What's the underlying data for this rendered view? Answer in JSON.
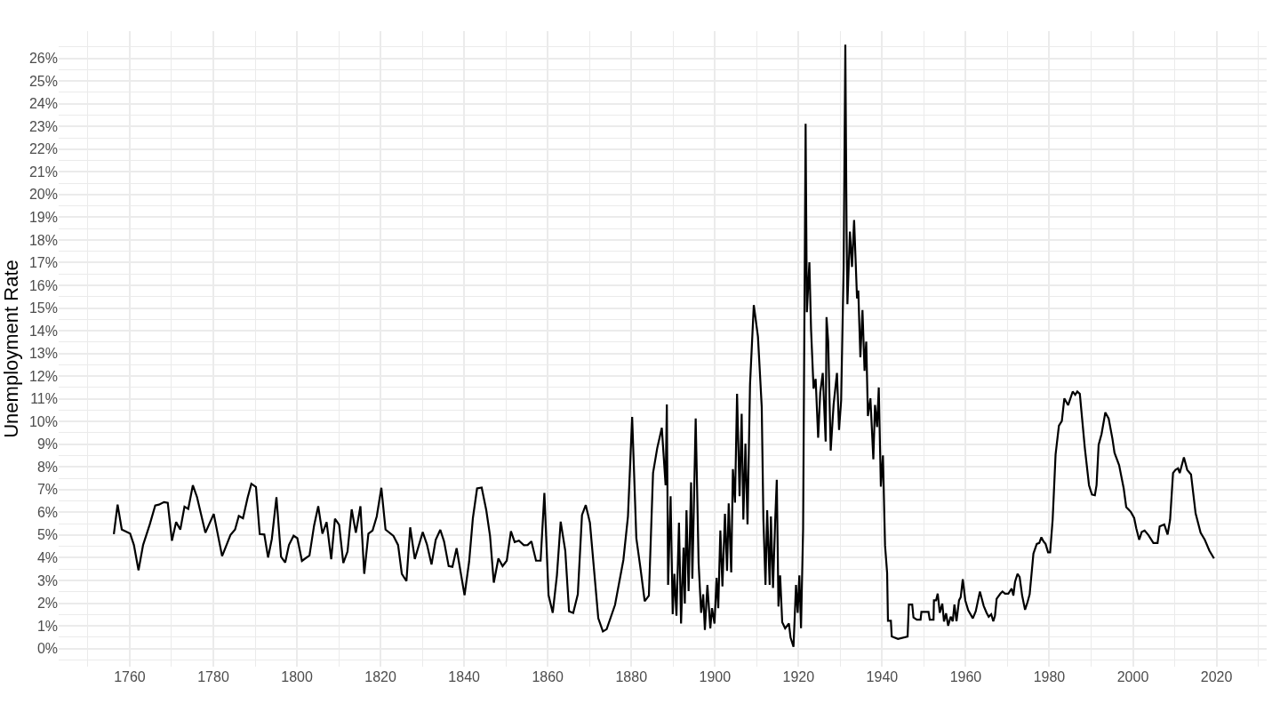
{
  "chart_data": {
    "type": "line",
    "ylabel": "Unemployment Rate",
    "xlim": [
      1743,
      2032
    ],
    "ylim": [
      -0.8,
      27.2
    ],
    "xticks": [
      1760,
      1780,
      1800,
      1820,
      1840,
      1860,
      1880,
      1900,
      1920,
      1940,
      1960,
      1980,
      2000,
      2020
    ],
    "yticks": [
      {
        "value": 0,
        "label": "0%"
      },
      {
        "value": 1,
        "label": "1%"
      },
      {
        "value": 2,
        "label": "2%"
      },
      {
        "value": 3,
        "label": "3%"
      },
      {
        "value": 4,
        "label": "4%"
      },
      {
        "value": 5,
        "label": "5%"
      },
      {
        "value": 6,
        "label": "6%"
      },
      {
        "value": 7,
        "label": "7%"
      },
      {
        "value": 8,
        "label": "8%"
      },
      {
        "value": 9,
        "label": "9%"
      },
      {
        "value": 10,
        "label": "10%"
      },
      {
        "value": 11,
        "label": "11%"
      },
      {
        "value": 12,
        "label": "12%"
      },
      {
        "value": 13,
        "label": "13%"
      },
      {
        "value": 14,
        "label": "14%"
      },
      {
        "value": 15,
        "label": "15%"
      },
      {
        "value": 16,
        "label": "16%"
      },
      {
        "value": 17,
        "label": "17%"
      },
      {
        "value": 18,
        "label": "18%"
      },
      {
        "value": 19,
        "label": "19%"
      },
      {
        "value": 20,
        "label": "20%"
      },
      {
        "value": 21,
        "label": "21%"
      },
      {
        "value": 22,
        "label": "22%"
      },
      {
        "value": 23,
        "label": "23%"
      },
      {
        "value": 24,
        "label": "24%"
      },
      {
        "value": 25,
        "label": "25%"
      },
      {
        "value": 26,
        "label": "26%"
      }
    ],
    "grid": true,
    "marker": "none",
    "line_style": "solid",
    "series": [
      {
        "color": "#000000",
        "x": [
          1756.2,
          1757.1,
          1758.1,
          1760.1,
          1761,
          1762.1,
          1763.2,
          1764.8,
          1766.1,
          1767,
          1768.2,
          1769.1,
          1770.1,
          1771.1,
          1772.1,
          1773.1,
          1774,
          1775.1,
          1776.1,
          1778.1,
          1780.1,
          1782.1,
          1784.1,
          1785.2,
          1786.1,
          1787.1,
          1788.2,
          1789.1,
          1790.2,
          1791.1,
          1792.2,
          1793.1,
          1794,
          1795.1,
          1796.2,
          1797.2,
          1798.1,
          1799.2,
          1800.1,
          1801.2,
          1803,
          1804.1,
          1805.1,
          1806.1,
          1807.1,
          1808.2,
          1809.1,
          1810.1,
          1811.1,
          1812.1,
          1813.1,
          1814.1,
          1815.2,
          1816.1,
          1817.1,
          1818.1,
          1819.1,
          1820.2,
          1821.2,
          1823.1,
          1824.2,
          1825.1,
          1826.2,
          1827.1,
          1828.2,
          1830.1,
          1831.1,
          1832.2,
          1833.2,
          1834.3,
          1835.2,
          1836.3,
          1837.2,
          1838.2,
          1840.1,
          1841.2,
          1842.1,
          1843.1,
          1844.2,
          1845.3,
          1846.2,
          1847.1,
          1848.2,
          1849.2,
          1850.2,
          1851.2,
          1852.1,
          1853.1,
          1854.3,
          1855.2,
          1856.1,
          1857.2,
          1858.3,
          1859.2,
          1860.2,
          1861.2,
          1862.2,
          1863.1,
          1864.2,
          1865.1,
          1866.1,
          1867.2,
          1868.2,
          1869.1,
          1870.1,
          1872.1,
          1873.2,
          1874.1,
          1876.1,
          1878.1,
          1879.2,
          1880.2,
          1881.2,
          1882.2,
          1883.2,
          1884.2,
          1885.2,
          1886.2,
          1887.3,
          1888.2,
          1888.5,
          1888.8,
          1889.4,
          1889.9,
          1890.3,
          1890.8,
          1891.4,
          1891.9,
          1892.5,
          1892.8,
          1893.2,
          1893.7,
          1894.3,
          1894.6,
          1895.4,
          1896.1,
          1896.7,
          1897.2,
          1897.6,
          1898.2,
          1898.9,
          1899.3,
          1899.9,
          1900.4,
          1900.8,
          1901.3,
          1901.8,
          1902.4,
          1902.9,
          1903.3,
          1903.9,
          1904.3,
          1904.8,
          1905.3,
          1905.9,
          1906.4,
          1906.8,
          1907.3,
          1907.8,
          1908.4,
          1909.3,
          1910.3,
          1911.2,
          1911.6,
          1912.1,
          1912.5,
          1913.1,
          1913.4,
          1913.9,
          1914.4,
          1914.8,
          1915.2,
          1915.6,
          1916.1,
          1916.8,
          1917.7,
          1918.1,
          1918.8,
          1919.4,
          1919.8,
          1920.2,
          1920.6,
          1921.1,
          1921.7,
          1922,
          1922.6,
          1923,
          1923.6,
          1924.1,
          1924.7,
          1925.2,
          1925.8,
          1926.5,
          1926.7,
          1927.1,
          1927.7,
          1928.4,
          1929.2,
          1929.7,
          1930.2,
          1930.8,
          1931.2,
          1931.5,
          1931.7,
          1932.3,
          1932.8,
          1933.3,
          1934,
          1934.3,
          1934.8,
          1935.3,
          1935.8,
          1936.2,
          1936.6,
          1937.2,
          1937.9,
          1938.3,
          1938.8,
          1939.2,
          1939.7,
          1940.2,
          1940.7,
          1941.2,
          1941.4,
          1942.1,
          1942.3,
          1943.8,
          1946.1,
          1946.4,
          1947.2,
          1947.5,
          1948.3,
          1949.2,
          1949.4,
          1951.1,
          1951.4,
          1952.3,
          1952.4,
          1952.9,
          1953.3,
          1953.8,
          1954.4,
          1954.8,
          1955.3,
          1955.8,
          1956.4,
          1956.9,
          1957.3,
          1957.8,
          1958.4,
          1958.8,
          1959.3,
          1959.9,
          1960.6,
          1961.7,
          1962.4,
          1963.4,
          1964.3,
          1965,
          1965.5,
          1966.1,
          1966.6,
          1967,
          1967.4,
          1968.3,
          1968.8,
          1969.4,
          1970.2,
          1971,
          1971.4,
          1971.8,
          1972.4,
          1972.9,
          1973.5,
          1974.2,
          1974.8,
          1975.3,
          1976.2,
          1977,
          1977.6,
          1978.1,
          1978.6,
          1979.1,
          1979.7,
          1980.2,
          1980.8,
          1981.5,
          1982.3,
          1983,
          1983.6,
          1984.5,
          1985.6,
          1986.2,
          1986.7,
          1987.3,
          1988.5,
          1989.5,
          1990.2,
          1990.9,
          1991.3,
          1991.8,
          1992.5,
          1993.4,
          1994.2,
          1995.1,
          1995.6,
          1996.7,
          1997.8,
          1998.4,
          1999.5,
          2000.3,
          2000.8,
          2001.5,
          2002.1,
          2002.8,
          2003.7,
          2004.9,
          2005.9,
          2006.4,
          2007.5,
          2008.3,
          2008.9,
          2009.6,
          2010.2,
          2010.8,
          2011.2,
          2012.2,
          2013,
          2013.9,
          2015,
          2016.2,
          2017.2,
          2018.3,
          2019.4
        ],
        "values": [
          5.04,
          6.34,
          5.24,
          5.06,
          4.56,
          3.45,
          4.56,
          5.47,
          6.3,
          6.34,
          6.45,
          6.42,
          4.75,
          5.57,
          5.24,
          6.25,
          6.15,
          7.19,
          6.67,
          5.1,
          5.93,
          4.07,
          5.0,
          5.24,
          5.84,
          5.74,
          6.64,
          7.26,
          7.12,
          5.04,
          5.02,
          4.01,
          4.83,
          6.67,
          4.04,
          3.79,
          4.56,
          4.97,
          4.86,
          3.86,
          4.1,
          5.41,
          6.27,
          5.06,
          5.57,
          3.93,
          5.72,
          5.45,
          3.77,
          4.27,
          6.13,
          5.1,
          6.27,
          3.29,
          5.06,
          5.2,
          5.82,
          7.08,
          5.24,
          4.96,
          4.56,
          3.29,
          2.97,
          5.34,
          3.94,
          5.13,
          4.59,
          3.7,
          4.79,
          5.23,
          4.72,
          3.63,
          3.6,
          4.42,
          2.35,
          3.83,
          5.75,
          7.05,
          7.09,
          6.09,
          4.96,
          2.9,
          3.97,
          3.63,
          3.87,
          5.17,
          4.69,
          4.75,
          4.55,
          4.56,
          4.72,
          3.87,
          3.87,
          6.85,
          2.35,
          1.57,
          3.22,
          5.59,
          4.31,
          1.64,
          1.57,
          2.39,
          5.88,
          6.32,
          5.54,
          1.33,
          0.75,
          0.85,
          1.92,
          3.9,
          5.82,
          10.2,
          4.86,
          3.52,
          2.08,
          2.33,
          7.73,
          8.83,
          9.72,
          7.19,
          10.75,
          2.8,
          6.71,
          1.51,
          3.29,
          1.44,
          5.54,
          1.1,
          4.45,
          1.98,
          6.09,
          2.53,
          7.32,
          3.08,
          10.13,
          3.77,
          1.57,
          2.39,
          0.82,
          2.8,
          0.89,
          1.78,
          1.1,
          3.11,
          1.78,
          5.2,
          2.74,
          5.93,
          3.42,
          6.39,
          3.35,
          7.9,
          6.43,
          11.22,
          6.71,
          10.34,
          5.68,
          9.03,
          5.47,
          11.63,
          15.13,
          13.73,
          10.64,
          5.68,
          2.8,
          6.09,
          2.8,
          5.82,
          2.67,
          5.54,
          7.43,
          1.85,
          3.22,
          1.16,
          0.89,
          1.1,
          0.48,
          0.07,
          2.8,
          1.57,
          3.22,
          0.89,
          5.27,
          23.12,
          14.82,
          17.02,
          14.05,
          11.45,
          11.88,
          9.29,
          11.28,
          12.14,
          9.12,
          14.6,
          13.52,
          8.72,
          10.76,
          12.14,
          9.63,
          10.93,
          16.81,
          26.6,
          18.37,
          15.17,
          18.37,
          16.81,
          18.88,
          15.42,
          15.77,
          12.83,
          14.91,
          12.23,
          13.52,
          10.24,
          11.02,
          8.34,
          10.73,
          9.76,
          11.5,
          7.13,
          8.51,
          4.54,
          3.33,
          1.22,
          1.22,
          0.53,
          0.42,
          0.53,
          1.94,
          1.94,
          1.37,
          1.27,
          1.27,
          1.61,
          1.61,
          1.27,
          1.27,
          2.12,
          2.12,
          2.42,
          1.57,
          1.98,
          1.19,
          1.55,
          1.0,
          1.4,
          1.2,
          1.94,
          1.2,
          2.12,
          2.26,
          3.05,
          2.12,
          1.68,
          1.33,
          1.64,
          2.51,
          1.88,
          1.57,
          1.4,
          1.51,
          1.2,
          1.44,
          2.19,
          2.42,
          2.51,
          2.42,
          2.42,
          2.64,
          2.33,
          2.94,
          3.29,
          3.15,
          2.33,
          1.71,
          2.05,
          2.39,
          4.18,
          4.61,
          4.65,
          4.9,
          4.72,
          4.61,
          4.24,
          4.24,
          5.68,
          8.55,
          9.82,
          10.02,
          11.02,
          10.72,
          11.32,
          11.18,
          11.32,
          11.22,
          8.83,
          7.19,
          6.78,
          6.75,
          7.19,
          8.97,
          9.45,
          10.4,
          10.13,
          9.24,
          8.62,
          8.08,
          7.05,
          6.23,
          6.02,
          5.75,
          5.3,
          4.79,
          5.13,
          5.2,
          5.0,
          4.65,
          4.65,
          5.38,
          5.47,
          5.02,
          5.68,
          7.73,
          7.87,
          7.94,
          7.73,
          8.42,
          7.87,
          7.67,
          5.95,
          5.1,
          4.79,
          4.31,
          3.97
        ]
      }
    ]
  }
}
